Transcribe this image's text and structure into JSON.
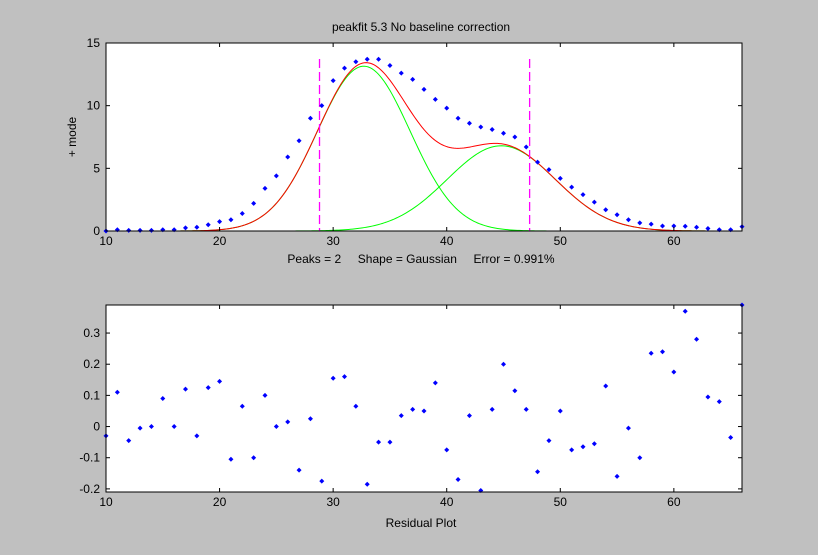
{
  "title": "peakfit 5.3    No baseline correction",
  "chart_data": [
    {
      "type": "line",
      "ylabel": "+ mode",
      "xlim": [
        10,
        66
      ],
      "ylim": [
        0,
        15
      ],
      "xticks": [
        10,
        20,
        30,
        40,
        50,
        60
      ],
      "yticks": [
        0,
        5,
        10,
        15
      ],
      "fit_info": "Peaks = 2     Shape = Gaussian     Error = 0.991%",
      "boundaries": [
        28.8,
        47.3
      ],
      "points": {
        "x": [
          10,
          11,
          12,
          13,
          14,
          15,
          16,
          17,
          18,
          19,
          20,
          21,
          22,
          23,
          24,
          25,
          26,
          27,
          28,
          29,
          30,
          31,
          32,
          33,
          34,
          35,
          36,
          37,
          38,
          39,
          40,
          41,
          42,
          43,
          44,
          45,
          46,
          47,
          48,
          49,
          50,
          51,
          52,
          53,
          54,
          55,
          56,
          57,
          58,
          59,
          60,
          61,
          62,
          63,
          64,
          65,
          66
        ],
        "y": [
          0.0,
          0.1,
          0.05,
          0.05,
          0.05,
          0.1,
          0.1,
          0.25,
          0.3,
          0.5,
          0.75,
          0.9,
          1.4,
          2.2,
          3.4,
          4.4,
          5.9,
          7.2,
          9.0,
          10.0,
          12.0,
          13.0,
          13.5,
          13.7,
          13.7,
          13.2,
          12.6,
          12.1,
          11.3,
          10.5,
          9.8,
          9.0,
          8.6,
          8.3,
          8.1,
          7.8,
          7.5,
          6.7,
          5.5,
          4.9,
          4.2,
          3.5,
          2.9,
          2.3,
          1.7,
          1.3,
          0.9,
          0.65,
          0.55,
          0.4,
          0.4,
          0.38,
          0.3,
          0.2,
          0.1,
          0.1,
          0.35
        ]
      },
      "series": [
        {
          "kind": "gaussian",
          "height": 13.15,
          "center": 32.7,
          "width": 9.6,
          "color": "#00ff00"
        },
        {
          "kind": "gaussian",
          "height": 6.8,
          "center": 44.8,
          "width": 11.2,
          "color": "#00ff00"
        },
        {
          "kind": "sum",
          "color": "#ff0000"
        }
      ],
      "colors": {
        "points": "#0000ff",
        "boundaries": "#ff00ff"
      }
    },
    {
      "type": "scatter",
      "xlabel": "Residual Plot",
      "xlim": [
        10,
        66
      ],
      "ylim": [
        -0.21,
        0.39
      ],
      "xticks": [
        10,
        20,
        30,
        40,
        50,
        60
      ],
      "yticks": [
        -0.2,
        -0.1,
        0,
        0.1,
        0.2,
        0.3
      ],
      "ytick_labels": [
        "-0.2",
        "-0.1",
        "0",
        "0.1",
        "0.2",
        "0.3"
      ],
      "x": [
        10,
        11,
        12,
        13,
        14,
        15,
        16,
        17,
        18,
        19,
        20,
        21,
        22,
        23,
        24,
        25,
        26,
        27,
        28,
        29,
        30,
        31,
        32,
        33,
        34,
        35,
        36,
        37,
        38,
        39,
        40,
        41,
        42,
        43,
        44,
        45,
        46,
        47,
        48,
        49,
        50,
        51,
        52,
        53,
        54,
        55,
        56,
        57,
        58,
        59,
        60,
        61,
        62,
        63,
        64,
        65,
        66
      ],
      "y": [
        -0.03,
        0.11,
        -0.045,
        -0.005,
        0.0,
        0.09,
        0.0,
        0.12,
        -0.03,
        0.125,
        0.145,
        -0.105,
        0.065,
        -0.1,
        0.1,
        0.0,
        0.015,
        -0.14,
        0.025,
        -0.175,
        0.155,
        0.16,
        0.065,
        -0.185,
        -0.05,
        -0.05,
        0.035,
        0.055,
        0.05,
        0.14,
        -0.075,
        -0.17,
        0.035,
        -0.205,
        0.055,
        0.2,
        0.115,
        0.055,
        -0.145,
        -0.045,
        0.05,
        -0.075,
        -0.065,
        -0.055,
        0.13,
        -0.16,
        -0.005,
        -0.1,
        0.235,
        0.24,
        0.175,
        0.37,
        0.28,
        0.095,
        0.08,
        -0.035,
        0.39
      ],
      "color": "#0000ff"
    }
  ]
}
